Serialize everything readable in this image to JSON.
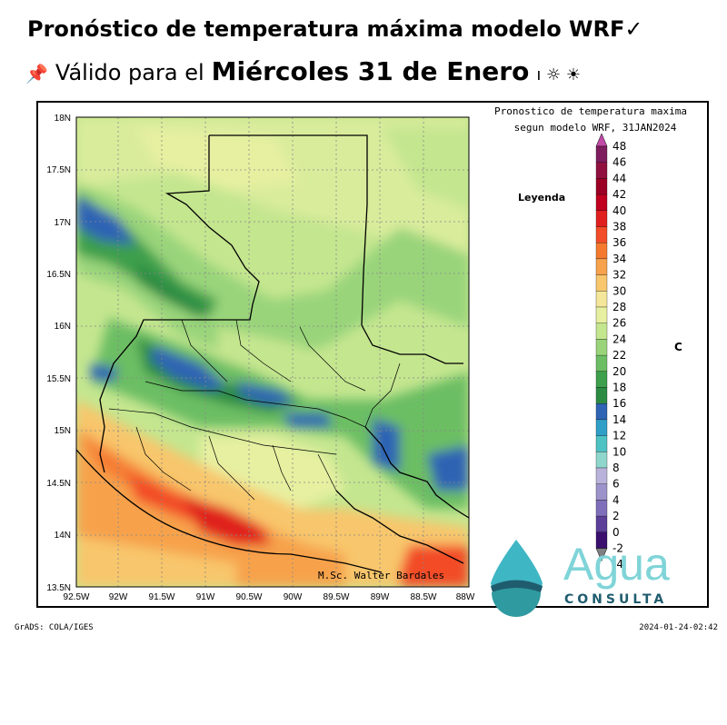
{
  "header": {
    "title": "Pronóstico de temperatura máxima modelo WRF✓",
    "pin_glyph": "📌",
    "valid_prefix": "Válido para el",
    "day": "Miércoles 31 de Enero",
    "tail": "ı ☼ ☀"
  },
  "map": {
    "plot_title_1": "Pronostico de temperatura maxima",
    "plot_title_2": "segun modelo WRF, 31JAN2024",
    "legend_title": "Leyenda",
    "unit": "C",
    "credit": "M.Sc. Walter Bardales",
    "lat_labels": [
      "18N",
      "17.5N",
      "17N",
      "16.5N",
      "16N",
      "15.5N",
      "15N",
      "14.5N",
      "14N",
      "13.5N"
    ],
    "lon_labels": [
      "92.5W",
      "92W",
      "91.5W",
      "91W",
      "90.5W",
      "90W",
      "89.5W",
      "89W",
      "88.5W",
      "88W"
    ],
    "colorbar_labels": [
      "48",
      "46",
      "44",
      "42",
      "40",
      "38",
      "36",
      "34",
      "32",
      "30",
      "28",
      "26",
      "24",
      "22",
      "20",
      "18",
      "16",
      "14",
      "12",
      "10",
      "8",
      "6",
      "4",
      "2",
      "0",
      "-2",
      "-4"
    ],
    "colorbar_colors": [
      "#7d1d5e",
      "#90113f",
      "#9b0024",
      "#c0001e",
      "#e0201f",
      "#f24c28",
      "#f57a30",
      "#f7a24c",
      "#f8c66c",
      "#f5e79a",
      "#e6f0a0",
      "#c4e68f",
      "#99d47a",
      "#6cbe64",
      "#3e9f4c",
      "#2b8b43",
      "#2f64b4",
      "#2f9fc7",
      "#4fc2c4",
      "#8fd7cc",
      "#b9b2da",
      "#9d93cb",
      "#7f6fbb",
      "#5c3f99",
      "#3b0f6e",
      "#7f8084"
    ]
  },
  "logo": {
    "word": "Agua",
    "sub": "CONSULTA",
    "colors": {
      "teal": "#3fb6c4",
      "dark": "#1f5c6e",
      "light": "#7fd4d8"
    }
  },
  "footer": {
    "left": "GrADS: COLA/IGES",
    "right": "2024-01-24-02:42"
  }
}
